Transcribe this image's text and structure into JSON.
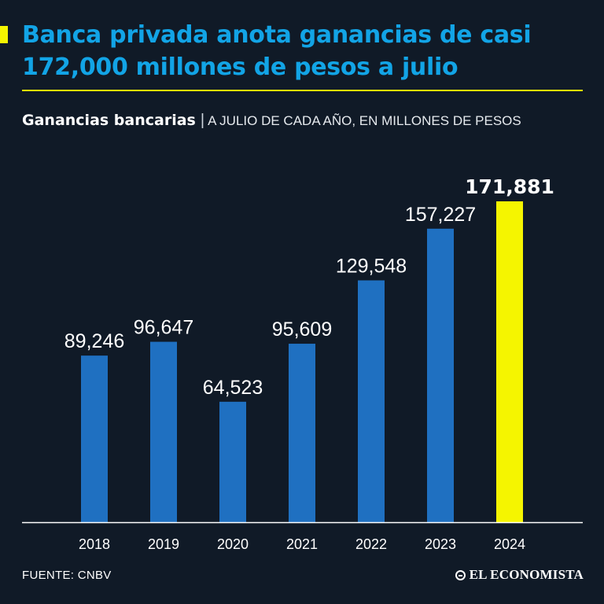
{
  "headline": "Banca privada anota ganancias de casi 172,000 millones de pesos a julio",
  "subtitle": {
    "strong": "Ganancias bancarias",
    "separator": "|",
    "note": "A JULIO DE CADA AÑO, EN MILLONES DE PESOS"
  },
  "colors": {
    "background": "#101a27",
    "headline": "#12a4e6",
    "accent": "#f5f500",
    "bar": "#1f70c1",
    "highlight": "#f5f500"
  },
  "chart_data": {
    "type": "bar",
    "categories": [
      "2018",
      "2019",
      "2020",
      "2021",
      "2022",
      "2023",
      "2024"
    ],
    "values": [
      89246,
      96647,
      64523,
      95609,
      129548,
      157227,
      171881
    ],
    "labels": [
      "89,246",
      "96,647",
      "64,523",
      "95,609",
      "129,548",
      "157,227",
      "171,881"
    ],
    "highlight_index": 6,
    "ylim": [
      0,
      171881
    ],
    "grid": false,
    "legend": "none"
  },
  "footer": {
    "source": "FUENTE: CNBV",
    "logo": "EL ECONOMISTA"
  }
}
